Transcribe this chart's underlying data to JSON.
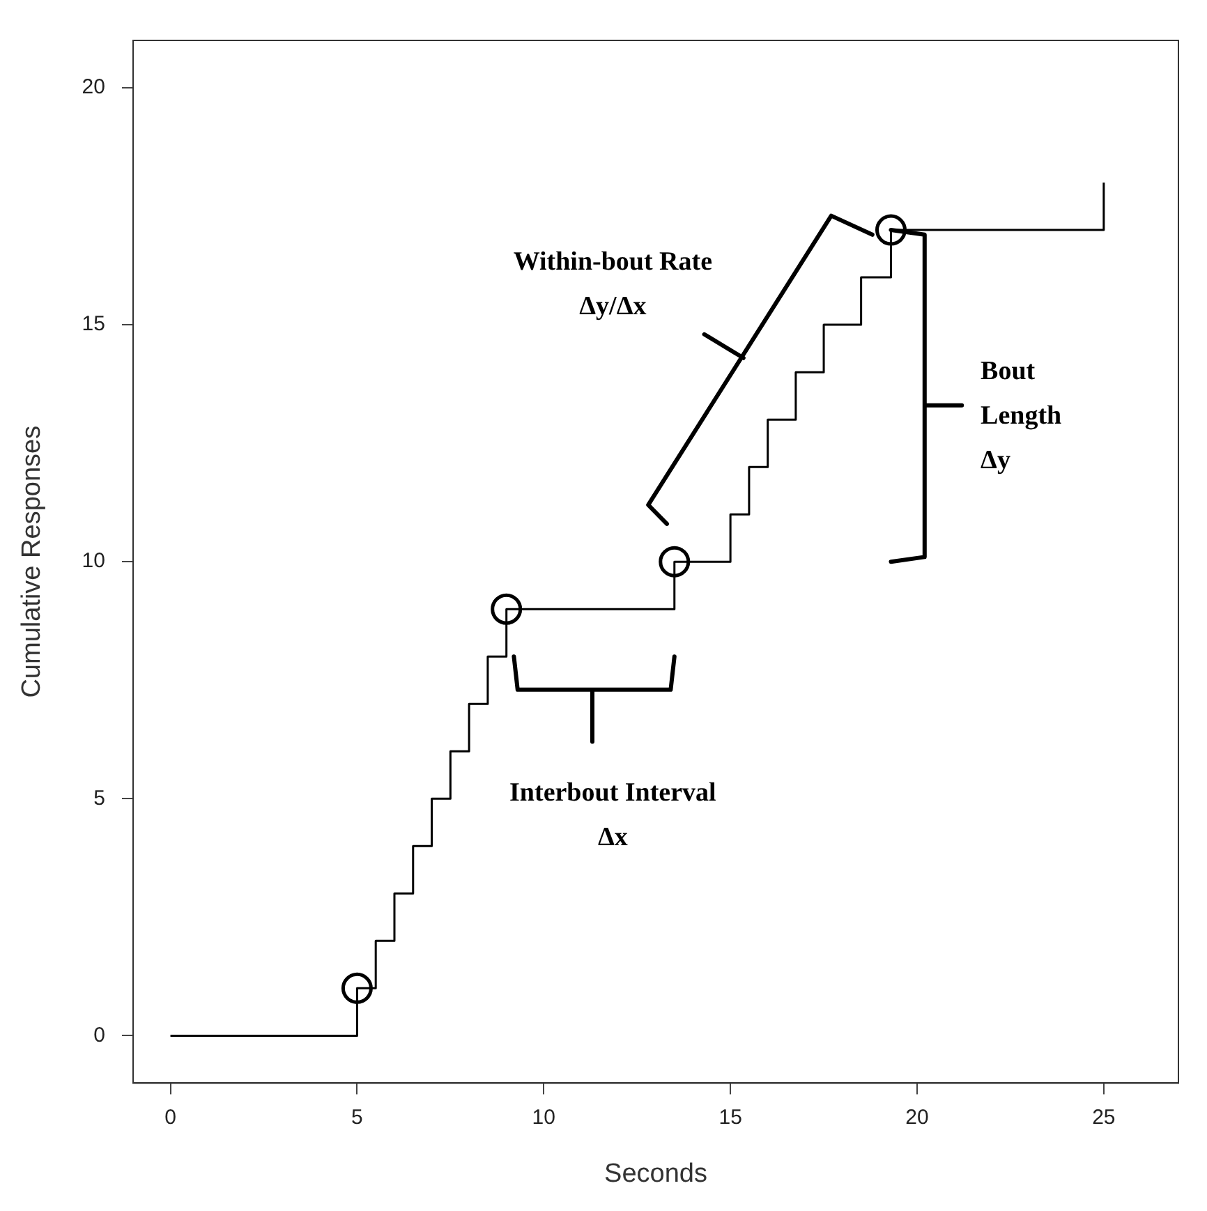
{
  "chart_data": {
    "type": "step",
    "xlabel": "Seconds",
    "ylabel": "Cumulative Responses",
    "xlim": [
      -1,
      27
    ],
    "ylim": [
      -1,
      21
    ],
    "xticks": [
      0,
      5,
      10,
      15,
      20,
      25
    ],
    "yticks": [
      0,
      5,
      10,
      15,
      20
    ],
    "grid": false,
    "legend": false,
    "series": [
      {
        "color": "#000000",
        "marker": "none",
        "x": [
          0,
          5,
          5.5,
          6,
          6.5,
          7,
          7.5,
          8,
          8.5,
          9,
          13.5,
          15,
          15.5,
          16,
          16.75,
          17.5,
          18.5,
          19.3,
          25
        ],
        "values": [
          0,
          1,
          2,
          3,
          4,
          5,
          6,
          7,
          8,
          9,
          10,
          11,
          12,
          13,
          14,
          15,
          16,
          17,
          18
        ]
      },
      {
        "type": "scatter",
        "color": "#000000",
        "marker": "circle",
        "x": [
          5,
          9,
          13.5,
          19.3
        ],
        "values": [
          1,
          9,
          10,
          17
        ]
      }
    ],
    "annotations": [
      "Interbout Interval\nΔx",
      "Bout\nLength\nΔy",
      "Within-bout Rate\nΔy/Δx"
    ]
  }
}
